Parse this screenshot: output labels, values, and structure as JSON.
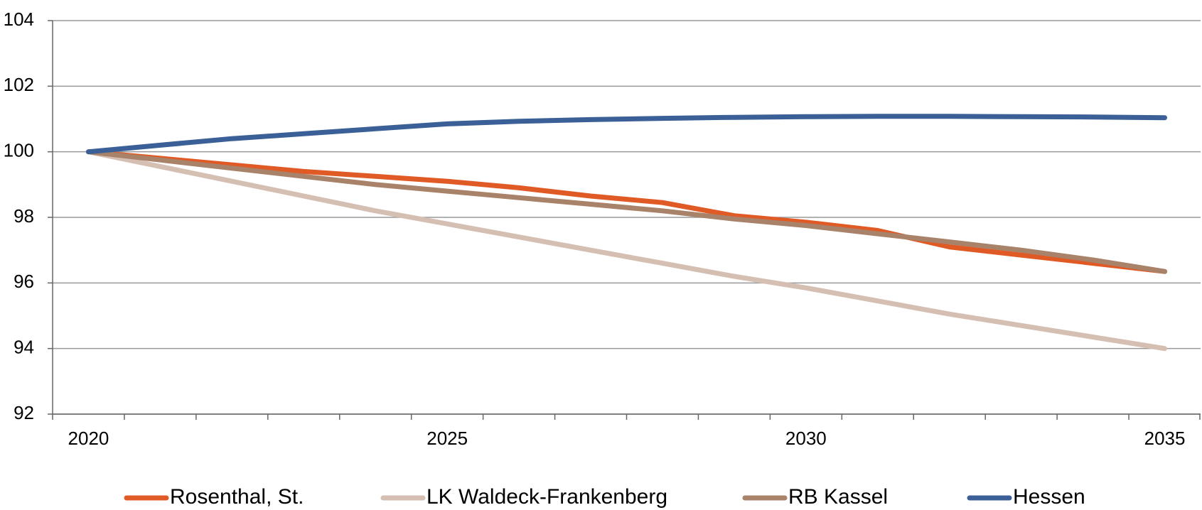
{
  "chart_data": {
    "type": "line",
    "categories": [
      "2020",
      null,
      null,
      null,
      null,
      "2025",
      null,
      null,
      null,
      null,
      "2030",
      null,
      null,
      null,
      null,
      "2035"
    ],
    "series": [
      {
        "name": "Rosenthal, St.",
        "color": "#e05a26",
        "values": [
          100,
          99.8,
          99.6,
          99.4,
          99.25,
          99.1,
          98.9,
          98.65,
          98.45,
          98.05,
          97.85,
          97.6,
          97.1,
          96.85,
          96.6,
          96.35
        ]
      },
      {
        "name": "LK Waldeck-Frankenberg",
        "color": "#d5bfb2",
        "values": [
          100,
          99.55,
          99.1,
          98.65,
          98.2,
          97.8,
          97.4,
          97.0,
          96.6,
          96.2,
          95.85,
          95.45,
          95.05,
          94.7,
          94.35,
          94.0
        ]
      },
      {
        "name": "RB Kassel",
        "color": "#a88269",
        "values": [
          100,
          99.75,
          99.5,
          99.25,
          99.0,
          98.8,
          98.6,
          98.4,
          98.2,
          97.95,
          97.75,
          97.5,
          97.25,
          97.0,
          96.7,
          96.35
        ]
      },
      {
        "name": "Hessen",
        "color": "#3b6097",
        "values": [
          100,
          100.2,
          100.4,
          100.55,
          100.7,
          100.85,
          100.93,
          100.98,
          101.02,
          101.05,
          101.07,
          101.08,
          101.08,
          101.07,
          101.06,
          101.04
        ]
      }
    ],
    "ylim": [
      92,
      104
    ],
    "yticks": [
      92,
      94,
      96,
      98,
      100,
      102,
      104
    ],
    "grid": true,
    "legend": "bottom"
  }
}
